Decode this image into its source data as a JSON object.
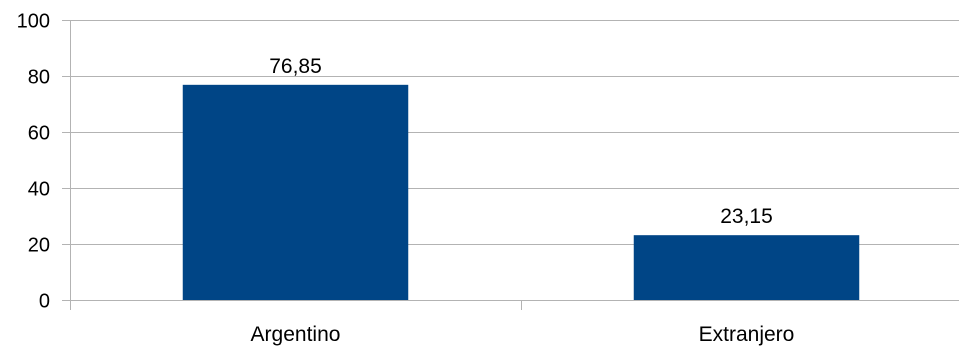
{
  "chart_data": {
    "type": "bar",
    "categories": [
      "Argentino",
      "Extranjero"
    ],
    "values": [
      76.85,
      23.15
    ],
    "value_labels": [
      "76,85",
      "23,15"
    ],
    "title": "",
    "xlabel": "",
    "ylabel": "",
    "ylim": [
      0,
      100
    ],
    "y_ticks": [
      0,
      20,
      40,
      60,
      80,
      100
    ],
    "y_tick_labels": [
      "0",
      "20",
      "40",
      "60",
      "80",
      "100"
    ],
    "grid": true,
    "legend": "none",
    "bar_color": "#004586",
    "grid_color": "#b3b3b3"
  }
}
